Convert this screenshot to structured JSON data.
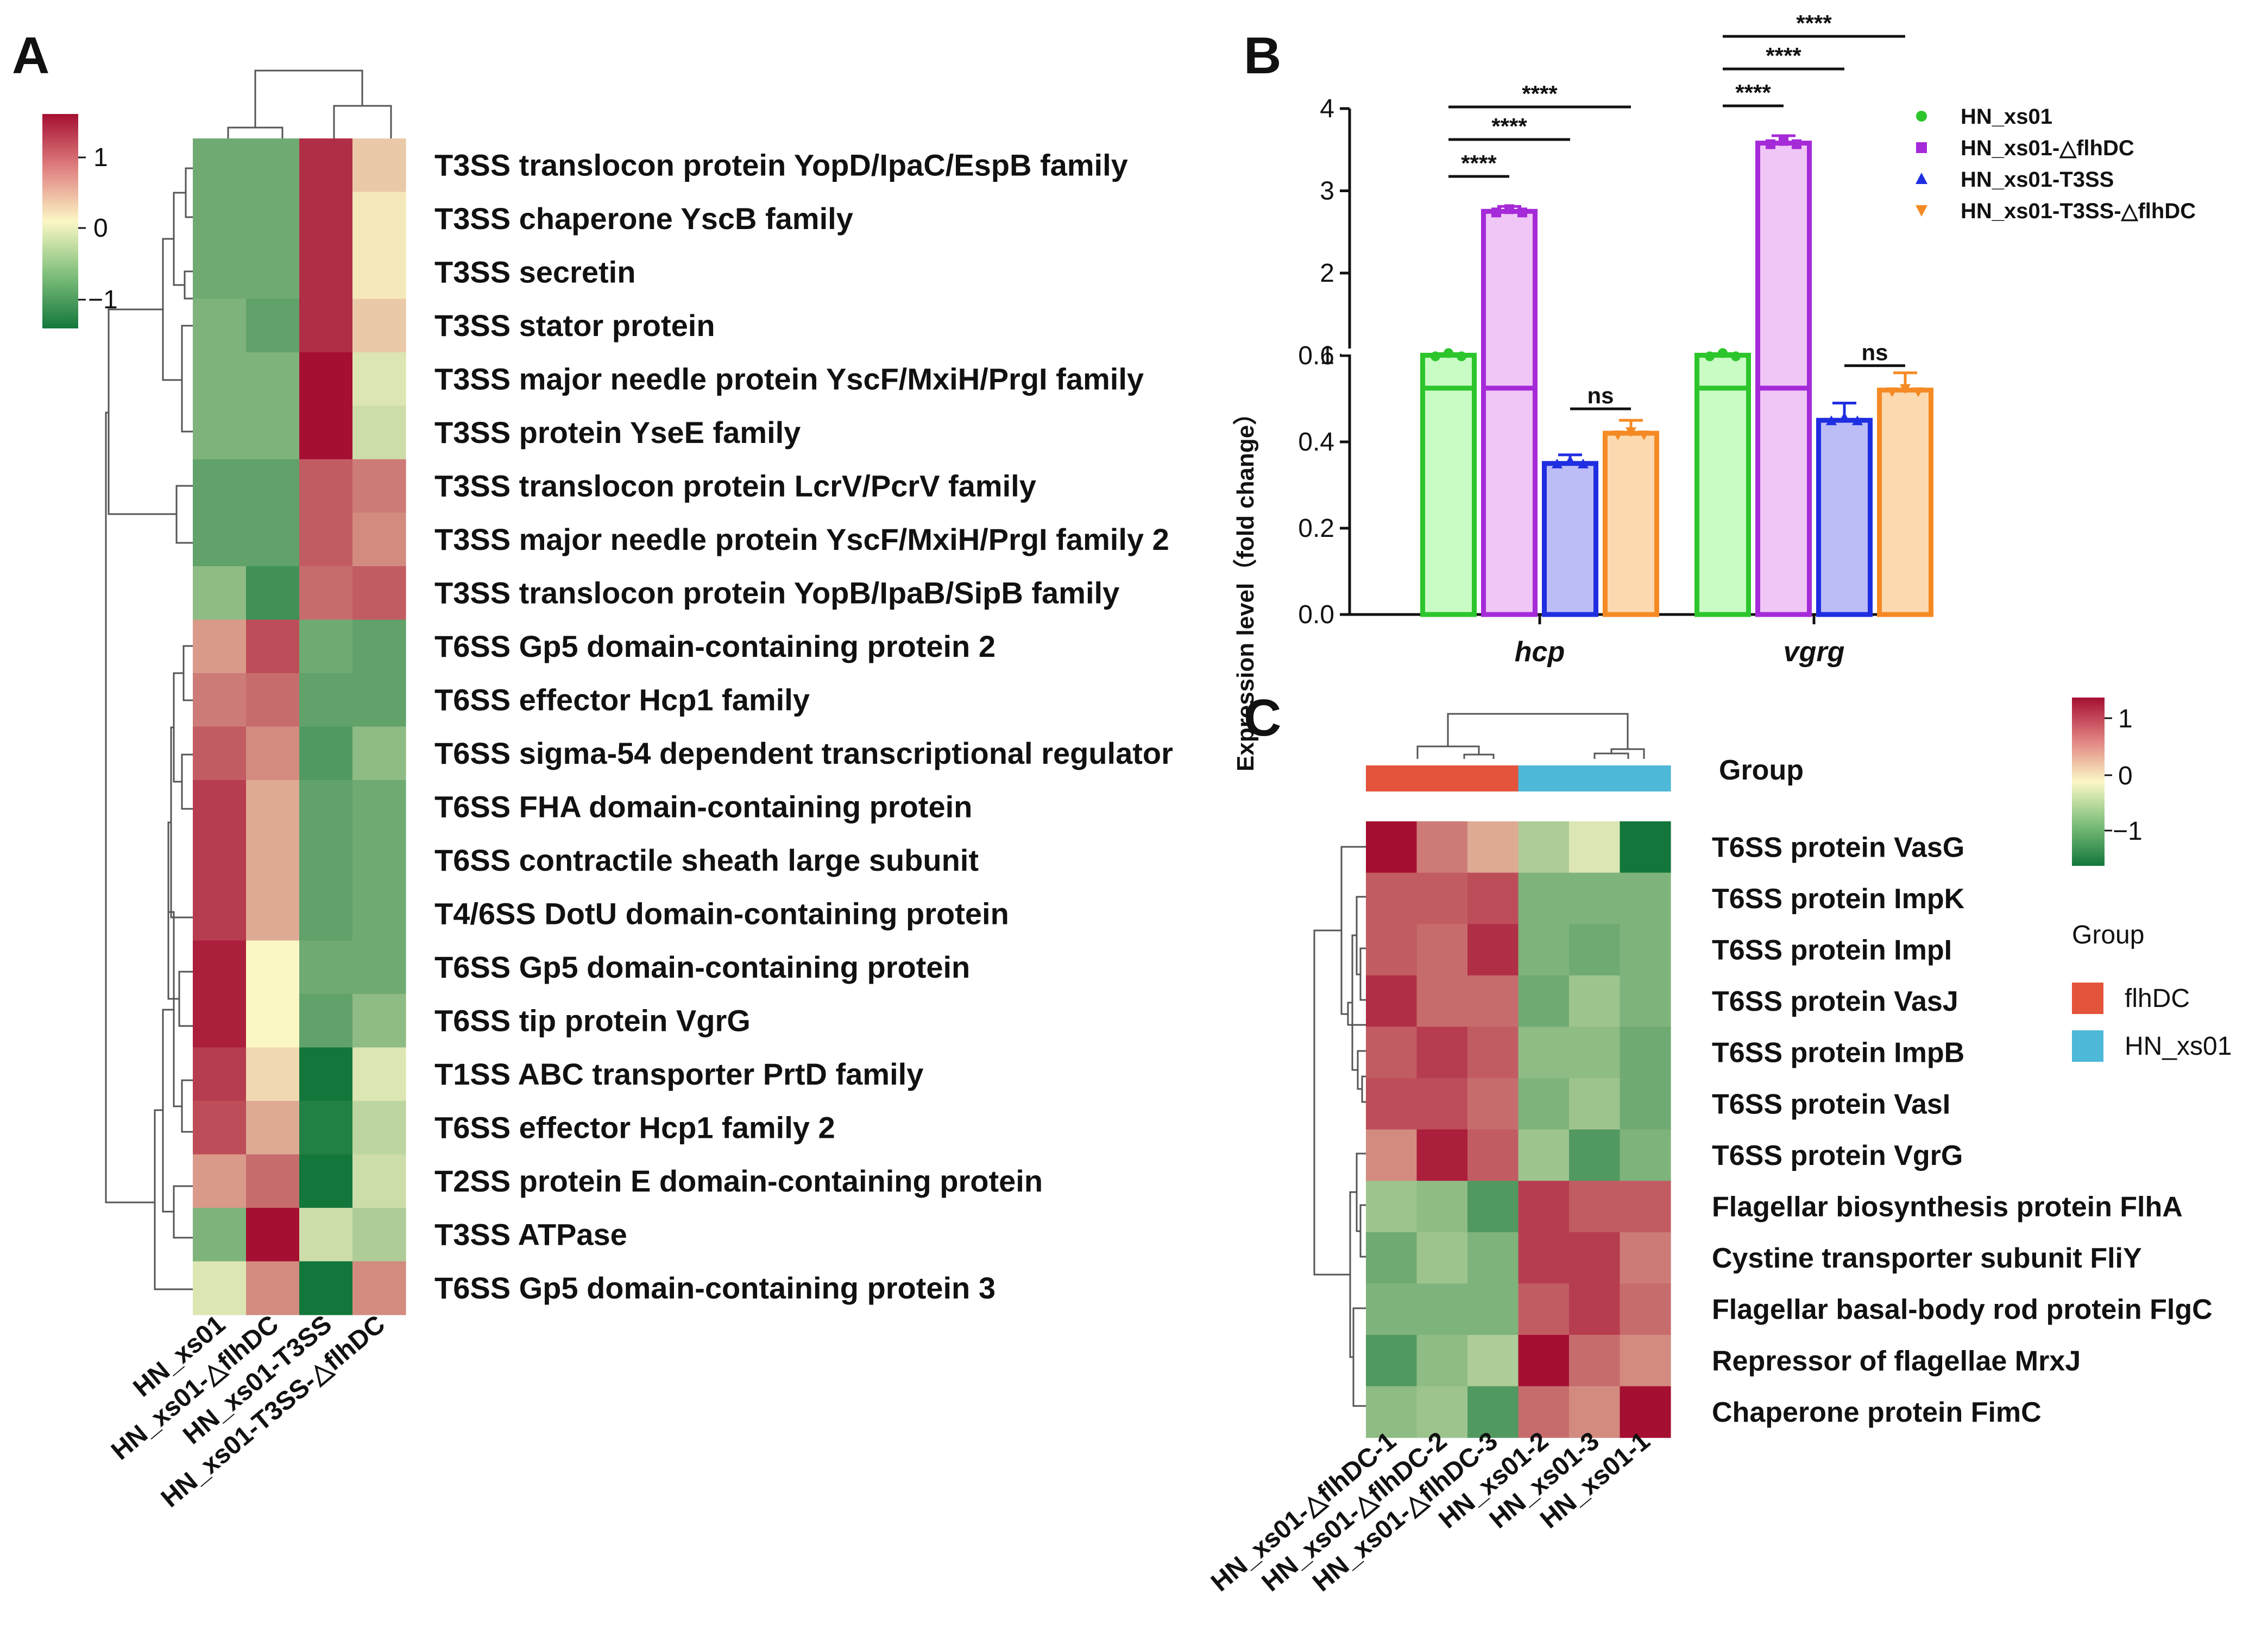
{
  "panels": {
    "a": "A",
    "b": "B",
    "c": "C"
  },
  "colors": {
    "low": "#13773c",
    "mid": "#fbf7c5",
    "high": "#a50f32",
    "series": [
      "#2cc52c",
      "#a52ad8",
      "#1f2ee0",
      "#f58a24"
    ],
    "series_fill": [
      "#c9fbc4",
      "#efc6f6",
      "#bcbdf7",
      "#fdd9b0"
    ],
    "group_flhDC": "#e4533c",
    "group_HN_xs01": "#4db8d8"
  },
  "chart_data": [
    {
      "id": "A",
      "type": "heatmap",
      "title": "",
      "colorbar": {
        "min": -1.5,
        "max": 1.5,
        "ticks": [
          "1",
          "0",
          "−1"
        ]
      },
      "columns": [
        "HN_xs01",
        "HN_xs01-△flhDC",
        "HN_xs01-T3SS",
        "HN_xs01-T3SS-△flhDC"
      ],
      "rows": [
        "T3SS translocon protein YopD/IpaC/EspB family",
        "T3SS chaperone YscB family",
        "T3SS secretin",
        "T3SS stator protein",
        "T3SS major needle protein YscF/MxiH/PrgI family",
        "T3SS protein YseE family",
        "T3SS translocon protein LcrV/PcrV family",
        "T3SS major needle protein YscF/MxiH/PrgI family 2",
        "T3SS translocon protein YopB/IpaB/SipB family",
        "T6SS Gp5 domain-containing protein 2",
        "T6SS effector Hcp1 family",
        "T6SS sigma-54 dependent transcriptional regulator",
        "T6SS FHA domain-containing protein",
        "T6SS contractile sheath large subunit",
        "T4/6SS DotU domain-containing protein",
        "T6SS Gp5 domain-containing protein",
        "T6SS tip protein VgrG",
        "T1SS ABC transporter PrtD family",
        "T6SS effector Hcp1 family 2",
        "T2SS protein E domain-containing protein",
        "T3SS ATPase",
        "T6SS Gp5 domain-containing protein 3"
      ],
      "values": [
        [
          -0.9,
          -0.9,
          1.3,
          0.3
        ],
        [
          -0.9,
          -0.9,
          1.3,
          0.1
        ],
        [
          -0.9,
          -0.9,
          1.3,
          0.1
        ],
        [
          -0.8,
          -1.0,
          1.3,
          0.3
        ],
        [
          -0.8,
          -0.8,
          1.5,
          -0.2
        ],
        [
          -0.8,
          -0.8,
          1.5,
          -0.3
        ],
        [
          -1.0,
          -1.0,
          1.0,
          0.8
        ],
        [
          -1.0,
          -1.0,
          1.0,
          0.7
        ],
        [
          -0.7,
          -1.2,
          0.9,
          1.0
        ],
        [
          0.6,
          1.1,
          -0.9,
          -1.0
        ],
        [
          0.8,
          0.9,
          -1.0,
          -1.0
        ],
        [
          1.0,
          0.7,
          -1.1,
          -0.7
        ],
        [
          1.2,
          0.5,
          -1.0,
          -0.9
        ],
        [
          1.2,
          0.5,
          -1.0,
          -0.9
        ],
        [
          1.2,
          0.5,
          -1.0,
          -0.9
        ],
        [
          1.4,
          0.0,
          -0.9,
          -0.9
        ],
        [
          1.4,
          0.0,
          -1.0,
          -0.7
        ],
        [
          1.2,
          0.2,
          -1.5,
          -0.2
        ],
        [
          1.1,
          0.5,
          -1.4,
          -0.4
        ],
        [
          0.6,
          0.9,
          -1.5,
          -0.3
        ],
        [
          -0.8,
          1.5,
          -0.3,
          -0.5
        ],
        [
          -0.2,
          0.7,
          -1.5,
          0.7
        ]
      ]
    },
    {
      "id": "B",
      "type": "bar",
      "title": "",
      "xlabel": "",
      "ylabel": "Expression level（fold change）",
      "categories": [
        "hcp",
        "vgrg"
      ],
      "ylim_lower": [
        0,
        0.6
      ],
      "ylim_upper": [
        0.6,
        4
      ],
      "yticks_lower": [
        "0.0",
        "0.2",
        "0.4",
        "0.6"
      ],
      "yticks_upper": [
        "1",
        "2",
        "3",
        "4"
      ],
      "series": [
        {
          "name": "HN_xs01",
          "marker": "●",
          "values": [
            1.0,
            1.0
          ],
          "errors": [
            0.02,
            0.02
          ]
        },
        {
          "name": "HN_xs01-△flhDC",
          "marker": "■",
          "values": [
            2.75,
            3.58
          ],
          "errors": [
            0.06,
            0.09
          ]
        },
        {
          "name": "HN_xs01-T3SS",
          "marker": "▲",
          "values": [
            0.35,
            0.45
          ],
          "errors": [
            0.02,
            0.04
          ]
        },
        {
          "name": "HN_xs01-T3SS-△flhDC",
          "marker": "▼",
          "values": [
            0.42,
            0.52
          ],
          "errors": [
            0.03,
            0.04
          ]
        }
      ],
      "significance": [
        {
          "category": 0,
          "from": 0,
          "to": 1,
          "label": "****"
        },
        {
          "category": 0,
          "from": 0,
          "to": 2,
          "label": "****"
        },
        {
          "category": 0,
          "from": 0,
          "to": 3,
          "label": "****"
        },
        {
          "category": 0,
          "from": 2,
          "to": 3,
          "label": "ns"
        },
        {
          "category": 1,
          "from": 0,
          "to": 1,
          "label": "****"
        },
        {
          "category": 1,
          "from": 0,
          "to": 2,
          "label": "****"
        },
        {
          "category": 1,
          "from": 0,
          "to": 3,
          "label": "****"
        },
        {
          "category": 1,
          "from": 2,
          "to": 3,
          "label": "ns"
        }
      ]
    },
    {
      "id": "C",
      "type": "heatmap",
      "title": "",
      "colorbar": {
        "min": -1.5,
        "max": 1.5,
        "ticks": [
          "1",
          "0",
          "−1"
        ]
      },
      "group_label": "Group",
      "group_legend_title": "Group",
      "groups": [
        "flhDC",
        "HN_xs01"
      ],
      "column_groups": [
        0,
        0,
        0,
        1,
        1,
        1
      ],
      "columns": [
        "HN_xs01-△flhDC-1",
        "HN_xs01-△flhDC-2",
        "HN_xs01-△flhDC-3",
        "HN_xs01-2",
        "HN_xs01-3",
        "HN_xs01-1"
      ],
      "rows": [
        "T6SS protein VasG",
        "T6SS protein ImpK",
        "T6SS protein ImpI",
        "T6SS protein VasJ",
        "T6SS protein ImpB",
        "T6SS protein VasI",
        "T6SS protein VgrG",
        "Flagellar biosynthesis protein FlhA",
        "Cystine transporter subunit FliY",
        "Flagellar basal-body rod protein FlgC",
        "Repressor of flagellae MrxJ",
        "Chaperone protein FimC"
      ],
      "values": [
        [
          1.5,
          0.8,
          0.5,
          -0.5,
          -0.2,
          -1.6
        ],
        [
          1.0,
          1.0,
          1.1,
          -0.8,
          -0.8,
          -0.8
        ],
        [
          1.0,
          0.9,
          1.3,
          -0.8,
          -0.9,
          -0.8
        ],
        [
          1.3,
          0.9,
          0.9,
          -0.9,
          -0.6,
          -0.8
        ],
        [
          1.0,
          1.2,
          1.0,
          -0.7,
          -0.7,
          -0.9
        ],
        [
          1.1,
          1.1,
          0.9,
          -0.8,
          -0.6,
          -0.9
        ],
        [
          0.7,
          1.4,
          1.0,
          -0.6,
          -1.1,
          -0.8
        ],
        [
          -0.6,
          -0.7,
          -1.1,
          1.2,
          1.0,
          1.0
        ],
        [
          -0.9,
          -0.6,
          -0.8,
          1.2,
          1.2,
          0.8
        ],
        [
          -0.8,
          -0.8,
          -0.8,
          1.0,
          1.2,
          0.9
        ],
        [
          -1.1,
          -0.7,
          -0.5,
          1.5,
          0.9,
          0.7
        ],
        [
          -0.7,
          -0.6,
          -1.1,
          0.9,
          0.7,
          1.5
        ]
      ]
    }
  ]
}
